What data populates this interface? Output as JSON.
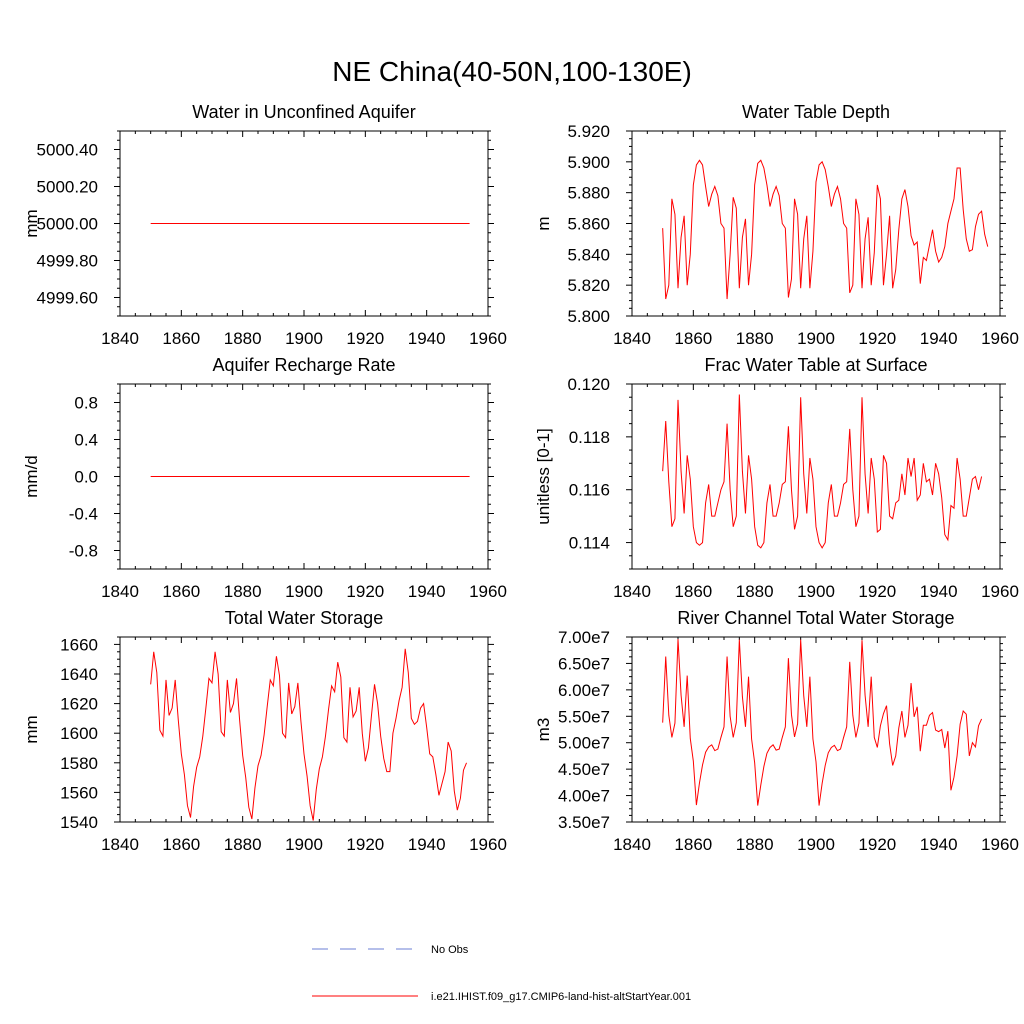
{
  "title": "NE China(40-50N,100-130E)",
  "series_color": "#ff0000",
  "obs_color": "#6b7fd6",
  "legend": {
    "obs_label": "No Obs",
    "model_label": "i.e21.IHIST.f09_g17.CMIP6-land-hist-altStartYear.001"
  },
  "chart_data": [
    {
      "type": "line",
      "title": "Water in Unconfined Aquifer",
      "ylabel": "mm",
      "xlim": [
        1840,
        1960
      ],
      "xticks": [
        1840,
        1860,
        1880,
        1900,
        1920,
        1940,
        1960
      ],
      "xtick_labels": [
        "1840",
        "1860",
        "1880",
        "1900",
        "1920",
        "1940",
        "1960"
      ],
      "ylim": [
        4999.5,
        5000.5
      ],
      "yticks": [
        4999.6,
        4999.8,
        5000.0,
        5000.2,
        5000.4
      ],
      "ytick_labels": [
        "4999.60",
        "4999.80",
        "5000.00",
        "5000.20",
        "5000.40"
      ],
      "x_start": 1850,
      "y": [
        5000,
        5000,
        5000,
        5000,
        5000,
        5000,
        5000,
        5000,
        5000,
        5000,
        5000,
        5000,
        5000,
        5000,
        5000,
        5000,
        5000,
        5000,
        5000,
        5000,
        5000,
        5000,
        5000,
        5000,
        5000,
        5000,
        5000,
        5000,
        5000,
        5000,
        5000,
        5000,
        5000,
        5000,
        5000,
        5000,
        5000,
        5000,
        5000,
        5000,
        5000,
        5000,
        5000,
        5000,
        5000,
        5000,
        5000,
        5000,
        5000,
        5000,
        5000,
        5000,
        5000,
        5000,
        5000,
        5000,
        5000,
        5000,
        5000,
        5000,
        5000,
        5000,
        5000,
        5000,
        5000,
        5000,
        5000,
        5000,
        5000,
        5000,
        5000,
        5000,
        5000,
        5000,
        5000,
        5000,
        5000,
        5000,
        5000,
        5000,
        5000,
        5000,
        5000,
        5000,
        5000,
        5000,
        5000,
        5000,
        5000,
        5000,
        5000,
        5000,
        5000,
        5000,
        5000,
        5000,
        5000,
        5000,
        5000,
        5000,
        5000,
        5000,
        5000,
        5000,
        5000
      ]
    },
    {
      "type": "line",
      "title": "Water Table Depth",
      "ylabel": "m",
      "xlim": [
        1840,
        1960
      ],
      "xticks": [
        1840,
        1860,
        1880,
        1900,
        1920,
        1940,
        1960
      ],
      "xtick_labels": [
        "1840",
        "1860",
        "1880",
        "1900",
        "1920",
        "1940",
        "1960"
      ],
      "ylim": [
        5.8,
        5.92
      ],
      "yticks": [
        5.8,
        5.82,
        5.84,
        5.86,
        5.88,
        5.9,
        5.92
      ],
      "ytick_labels": [
        "5.800",
        "5.820",
        "5.840",
        "5.860",
        "5.880",
        "5.900",
        "5.920"
      ],
      "x_start": 1850,
      "y": [
        5.857,
        5.811,
        5.82,
        5.876,
        5.866,
        5.818,
        5.851,
        5.865,
        5.82,
        5.84,
        5.885,
        5.898,
        5.901,
        5.898,
        5.884,
        5.871,
        5.879,
        5.884,
        5.878,
        5.86,
        5.857,
        5.811,
        5.84,
        5.877,
        5.87,
        5.818,
        5.851,
        5.863,
        5.82,
        5.84,
        5.885,
        5.899,
        5.901,
        5.896,
        5.885,
        5.871,
        5.879,
        5.884,
        5.878,
        5.86,
        5.857,
        5.812,
        5.824,
        5.876,
        5.866,
        5.818,
        5.85,
        5.865,
        5.818,
        5.842,
        5.887,
        5.898,
        5.9,
        5.895,
        5.884,
        5.871,
        5.879,
        5.884,
        5.876,
        5.86,
        5.857,
        5.815,
        5.82,
        5.876,
        5.866,
        5.818,
        5.85,
        5.864,
        5.82,
        5.841,
        5.885,
        5.876,
        5.82,
        5.84,
        5.865,
        5.818,
        5.83,
        5.856,
        5.876,
        5.882,
        5.871,
        5.852,
        5.846,
        5.848,
        5.821,
        5.838,
        5.836,
        5.846,
        5.856,
        5.842,
        5.835,
        5.838,
        5.845,
        5.86,
        5.868,
        5.876,
        5.896,
        5.896,
        5.869,
        5.85,
        5.842,
        5.843,
        5.858,
        5.866,
        5.868,
        5.853,
        5.845
      ]
    },
    {
      "type": "line",
      "title": "Aquifer Recharge Rate",
      "ylabel": "mm/d",
      "xlim": [
        1840,
        1960
      ],
      "xticks": [
        1840,
        1860,
        1880,
        1900,
        1920,
        1940,
        1960
      ],
      "xtick_labels": [
        "1840",
        "1860",
        "1880",
        "1900",
        "1920",
        "1940",
        "1960"
      ],
      "ylim": [
        -1.0,
        1.0
      ],
      "yticks": [
        -0.8,
        -0.4,
        0.0,
        0.4,
        0.8
      ],
      "ytick_labels": [
        "-0.8",
        "-0.4",
        "0.0",
        "0.4",
        "0.8"
      ],
      "x_start": 1850,
      "y": [
        0,
        0,
        0,
        0,
        0,
        0,
        0,
        0,
        0,
        0,
        0,
        0,
        0,
        0,
        0,
        0,
        0,
        0,
        0,
        0,
        0,
        0,
        0,
        0,
        0,
        0,
        0,
        0,
        0,
        0,
        0,
        0,
        0,
        0,
        0,
        0,
        0,
        0,
        0,
        0,
        0,
        0,
        0,
        0,
        0,
        0,
        0,
        0,
        0,
        0,
        0,
        0,
        0,
        0,
        0,
        0,
        0,
        0,
        0,
        0,
        0,
        0,
        0,
        0,
        0,
        0,
        0,
        0,
        0,
        0,
        0,
        0,
        0,
        0,
        0,
        0,
        0,
        0,
        0,
        0,
        0,
        0,
        0,
        0,
        0,
        0,
        0,
        0,
        0,
        0,
        0,
        0,
        0,
        0,
        0,
        0,
        0,
        0,
        0,
        0,
        0,
        0,
        0,
        0,
        0
      ]
    },
    {
      "type": "line",
      "title": "Frac Water Table at Surface",
      "ylabel": "unitless [0-1]",
      "xlim": [
        1840,
        1960
      ],
      "xticks": [
        1840,
        1860,
        1880,
        1900,
        1920,
        1940,
        1960
      ],
      "xtick_labels": [
        "1840",
        "1860",
        "1880",
        "1900",
        "1920",
        "1940",
        "1960"
      ],
      "ylim": [
        0.113,
        0.12
      ],
      "yticks": [
        0.114,
        0.116,
        0.118,
        0.12
      ],
      "ytick_labels": [
        "0.114",
        "0.116",
        "0.118",
        "0.120"
      ],
      "x_start": 1850,
      "y": [
        0.1167,
        0.1186,
        0.1163,
        0.1146,
        0.1149,
        0.1194,
        0.1167,
        0.1151,
        0.1173,
        0.1164,
        0.1146,
        0.114,
        0.1139,
        0.114,
        0.1155,
        0.1162,
        0.115,
        0.115,
        0.1155,
        0.116,
        0.1163,
        0.1185,
        0.116,
        0.1146,
        0.115,
        0.1196,
        0.1167,
        0.1151,
        0.1173,
        0.1164,
        0.1146,
        0.1139,
        0.1138,
        0.114,
        0.1155,
        0.1162,
        0.115,
        0.115,
        0.1155,
        0.1162,
        0.1163,
        0.1184,
        0.116,
        0.1145,
        0.115,
        0.1195,
        0.1166,
        0.1151,
        0.1172,
        0.1164,
        0.1146,
        0.114,
        0.1138,
        0.114,
        0.1155,
        0.1162,
        0.115,
        0.115,
        0.1155,
        0.1162,
        0.1163,
        0.1183,
        0.116,
        0.1146,
        0.115,
        0.1195,
        0.1166,
        0.1151,
        0.1172,
        0.1164,
        0.1144,
        0.1145,
        0.1173,
        0.117,
        0.115,
        0.1149,
        0.1155,
        0.1156,
        0.1166,
        0.1158,
        0.1172,
        0.1165,
        0.1172,
        0.1156,
        0.1158,
        0.117,
        0.1163,
        0.1164,
        0.1158,
        0.117,
        0.1166,
        0.1157,
        0.1143,
        0.1141,
        0.1154,
        0.1153,
        0.1172,
        0.1164,
        0.115,
        0.115,
        0.1157,
        0.1164,
        0.1165,
        0.116,
        0.1165
      ]
    },
    {
      "type": "line",
      "title": "Total Water Storage",
      "ylabel": "mm",
      "xlim": [
        1840,
        1960
      ],
      "xticks": [
        1840,
        1860,
        1880,
        1900,
        1920,
        1940,
        1960
      ],
      "xtick_labels": [
        "1840",
        "1860",
        "1880",
        "1900",
        "1920",
        "1940",
        "1960"
      ],
      "ylim": [
        1540,
        1665
      ],
      "yticks": [
        1540,
        1560,
        1580,
        1600,
        1620,
        1640,
        1660
      ],
      "ytick_labels": [
        "1540",
        "1560",
        "1580",
        "1600",
        "1620",
        "1640",
        "1660"
      ],
      "x_start": 1850,
      "y": [
        1633,
        1655,
        1641,
        1602,
        1598,
        1636,
        1612,
        1617,
        1636,
        1609,
        1586,
        1572,
        1551,
        1543,
        1564,
        1577,
        1584,
        1598,
        1617,
        1637,
        1634,
        1655,
        1640,
        1601,
        1598,
        1636,
        1614,
        1620,
        1637,
        1609,
        1585,
        1570,
        1550,
        1542,
        1563,
        1578,
        1585,
        1599,
        1618,
        1636,
        1632,
        1652,
        1639,
        1600,
        1597,
        1634,
        1613,
        1618,
        1634,
        1608,
        1586,
        1571,
        1551,
        1541,
        1562,
        1576,
        1584,
        1598,
        1616,
        1632,
        1628,
        1648,
        1638,
        1597,
        1594,
        1631,
        1611,
        1615,
        1631,
        1600,
        1581,
        1590,
        1612,
        1633,
        1620,
        1598,
        1583,
        1574,
        1574,
        1600,
        1610,
        1622,
        1631,
        1657,
        1641,
        1610,
        1606,
        1608,
        1617,
        1620,
        1604,
        1586,
        1584,
        1572,
        1558,
        1566,
        1574,
        1594,
        1588,
        1561,
        1548,
        1556,
        1575,
        1580
      ]
    },
    {
      "type": "line",
      "title": "River Channel Total Water Storage",
      "ylabel": "m3",
      "xlim": [
        1840,
        1960
      ],
      "xticks": [
        1840,
        1860,
        1880,
        1900,
        1920,
        1940,
        1960
      ],
      "xtick_labels": [
        "1840",
        "1860",
        "1880",
        "1900",
        "1920",
        "1940",
        "1960"
      ],
      "ylim": [
        35000000,
        70000000
      ],
      "yticks": [
        35000000,
        40000000,
        45000000,
        50000000,
        55000000,
        60000000,
        65000000,
        70000000
      ],
      "ytick_labels": [
        "3.50e7",
        "4.00e7",
        "4.50e7",
        "5.00e7",
        "5.50e7",
        "6.00e7",
        "6.50e7",
        "7.00e7"
      ],
      "x_start": 1850,
      "y": [
        53800000,
        66300000,
        55200000,
        51000000,
        53700000,
        69600000,
        59000000,
        53000000,
        62700000,
        50800000,
        46500000,
        38200000,
        42400000,
        45800000,
        48200000,
        49200000,
        49600000,
        48500000,
        48800000,
        51000000,
        53000000,
        66300000,
        55000000,
        51000000,
        53800000,
        69500000,
        58700000,
        53000000,
        62500000,
        50700000,
        46200000,
        38100000,
        42000000,
        45500000,
        48000000,
        49100000,
        49600000,
        48600000,
        48800000,
        51000000,
        53000000,
        66000000,
        55300000,
        51100000,
        53600000,
        69500000,
        58900000,
        53000000,
        62500000,
        50700000,
        46400000,
        38100000,
        42300000,
        45700000,
        48100000,
        49100000,
        49500000,
        48500000,
        48800000,
        51000000,
        53000000,
        65300000,
        55200000,
        51000000,
        53700000,
        69400000,
        59000000,
        53000000,
        62500000,
        51000000,
        49100000,
        53200000,
        55500000,
        57000000,
        49800000,
        45700000,
        47500000,
        52800000,
        56000000,
        51000000,
        53300000,
        61300000,
        54900000,
        56800000,
        48400000,
        53300000,
        53300000,
        55200000,
        55700000,
        52400000,
        52100000,
        52500000,
        49000000,
        52200000,
        41000000,
        43500000,
        47500000,
        53500000,
        56000000,
        55400000,
        47500000,
        50000000,
        49200000,
        53200000,
        54500000
      ]
    }
  ]
}
